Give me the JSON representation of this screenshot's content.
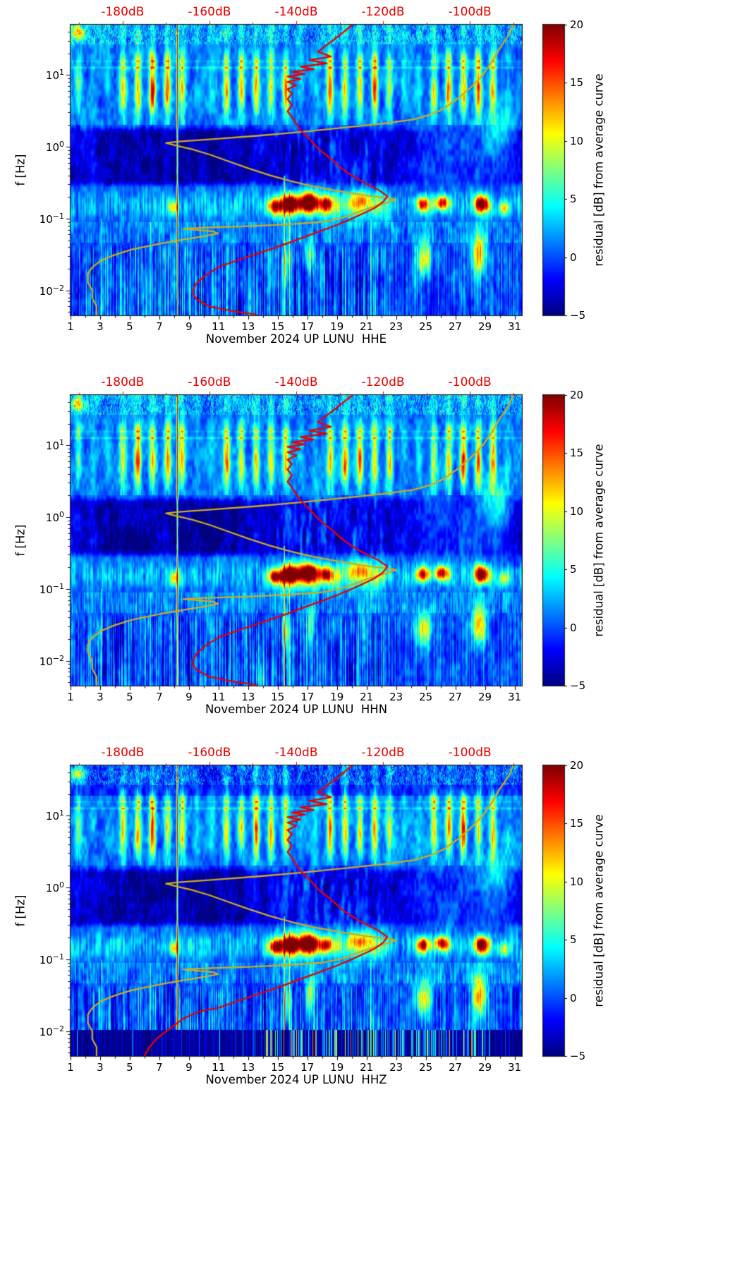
{
  "figure": {
    "background": "#ffffff"
  },
  "chart_data": {
    "type": "heatmap",
    "subtype": "seismic-noise-residual-spectrogram",
    "station": "UP LUNU",
    "month": "November 2024",
    "panels": [
      {
        "channel": "HHE",
        "xlabel": "November 2024 UP LUNU  HHE"
      },
      {
        "channel": "HHN",
        "xlabel": "November 2024 UP LUNU  HHN"
      },
      {
        "channel": "HHZ",
        "xlabel": "November 2024 UP LUNU  HHZ"
      }
    ],
    "x_axis": {
      "range_days": [
        1,
        31.5
      ],
      "major_tick_days": [
        1,
        3,
        5,
        7,
        9,
        11,
        13,
        15,
        17,
        19,
        21,
        23,
        25,
        27,
        29,
        31
      ],
      "minor_tick_days": [
        2,
        4,
        6,
        8,
        10,
        12,
        14,
        16,
        18,
        20,
        22,
        24,
        26,
        28,
        30
      ]
    },
    "y_axis": {
      "label": "f [Hz]",
      "scale": "log10",
      "range_hz": [
        0.0045,
        50
      ],
      "major_tick_exponents": [
        1,
        0,
        -1,
        -2
      ]
    },
    "top_axis": {
      "range_db": [
        -192,
        -88
      ],
      "tick_values_db": [
        -180,
        -160,
        -140,
        -120,
        -100
      ],
      "tick_labels": [
        "-180dB",
        "-160dB",
        "-140dB",
        "-120dB",
        "-100dB"
      ],
      "color": "#e60000"
    },
    "colorbar": {
      "label": "residual [dB] from average curve",
      "colormap": "jet",
      "range": [
        -5,
        20
      ],
      "tick_values": [
        20,
        15,
        10,
        5,
        0,
        -5
      ]
    },
    "curves": {
      "average_red": {
        "color": "#e80000",
        "points": [
          [
            -127,
            50
          ],
          [
            -129,
            40
          ],
          [
            -131,
            32
          ],
          [
            -133,
            26
          ],
          [
            -135,
            21
          ],
          [
            -132,
            18
          ],
          [
            -137,
            16
          ],
          [
            -133,
            14.5
          ],
          [
            -139,
            13
          ],
          [
            -136,
            12
          ],
          [
            -141,
            11
          ],
          [
            -138,
            10.3
          ],
          [
            -142,
            9.5
          ],
          [
            -139,
            8.8
          ],
          [
            -142,
            8
          ],
          [
            -140,
            7.2
          ],
          [
            -142,
            6.3
          ],
          [
            -141,
            5.5
          ],
          [
            -142,
            4.6
          ],
          [
            -141,
            3.8
          ],
          [
            -142,
            3.1
          ],
          [
            -141,
            2.6
          ],
          [
            -140,
            2.1
          ],
          [
            -139,
            1.7
          ],
          [
            -137,
            1.3
          ],
          [
            -135,
            0.95
          ],
          [
            -132,
            0.68
          ],
          [
            -129,
            0.47
          ],
          [
            -125,
            0.33
          ],
          [
            -121,
            0.25
          ],
          [
            -119,
            0.205
          ],
          [
            -120,
            0.17
          ],
          [
            -122,
            0.14
          ],
          [
            -125,
            0.115
          ],
          [
            -128,
            0.095
          ],
          [
            -131,
            0.08
          ],
          [
            -135,
            0.065
          ],
          [
            -139,
            0.053
          ],
          [
            -143,
            0.043
          ],
          [
            -148,
            0.034
          ],
          [
            -153,
            0.027
          ],
          [
            -158,
            0.021
          ],
          [
            -161,
            0.016
          ],
          [
            -163,
            0.0125
          ],
          [
            -164,
            0.0095
          ],
          [
            -163,
            0.0075
          ],
          [
            -160,
            0.006
          ],
          [
            -155,
            0.0052
          ],
          [
            -149,
            0.0046
          ]
        ],
        "hhz_low_freq_tail": [
          [
            -162,
            0.019
          ],
          [
            -166,
            0.015
          ],
          [
            -169,
            0.011
          ],
          [
            -172,
            0.008
          ],
          [
            -174,
            0.0058
          ],
          [
            -175,
            0.0045
          ]
        ]
      },
      "reference_yellow": {
        "color": "#ccaa22",
        "points": [
          [
            -90,
            50
          ],
          [
            -91,
            36
          ],
          [
            -93,
            24
          ],
          [
            -95,
            15
          ],
          [
            -97,
            10
          ],
          [
            -100,
            6.5
          ],
          [
            -103,
            4.6
          ],
          [
            -106,
            3.4
          ],
          [
            -109,
            2.8
          ],
          [
            -113,
            2.4
          ],
          [
            -120,
            2.1
          ],
          [
            -129,
            1.85
          ],
          [
            -139,
            1.6
          ],
          [
            -149,
            1.42
          ],
          [
            -159,
            1.28
          ],
          [
            -167,
            1.18
          ],
          [
            -170,
            1.13
          ],
          [
            -168,
            1.05
          ],
          [
            -164,
            0.92
          ],
          [
            -160,
            0.78
          ],
          [
            -156,
            0.64
          ],
          [
            -151,
            0.5
          ],
          [
            -146,
            0.4
          ],
          [
            -141,
            0.33
          ],
          [
            -136,
            0.28
          ],
          [
            -130,
            0.24
          ],
          [
            -124,
            0.21
          ],
          [
            -118,
            0.19
          ],
          [
            -117,
            0.183
          ],
          [
            -120,
            0.16
          ],
          [
            -124,
            0.135
          ],
          [
            -127,
            0.115
          ],
          [
            -130,
            0.1
          ],
          [
            -134,
            0.09
          ],
          [
            -142,
            0.083
          ],
          [
            -152,
            0.078
          ],
          [
            -162,
            0.0745
          ],
          [
            -166,
            0.072
          ],
          [
            -163,
            0.0695
          ],
          [
            -159,
            0.066
          ],
          [
            -158,
            0.062
          ],
          [
            -161,
            0.057
          ],
          [
            -166,
            0.051
          ],
          [
            -172,
            0.044
          ],
          [
            -178,
            0.037
          ],
          [
            -182,
            0.031
          ],
          [
            -185,
            0.026
          ],
          [
            -187,
            0.021
          ],
          [
            -188,
            0.017
          ],
          [
            -188,
            0.013
          ],
          [
            -187,
            0.01
          ],
          [
            -187,
            0.0078
          ],
          [
            -186,
            0.006
          ],
          [
            -186,
            0.0045
          ]
        ]
      }
    },
    "heatmap_features": {
      "stripe_day_intensity": [
        0.5,
        0.15,
        0.12,
        0.9,
        1,
        1,
        0.95,
        0.85,
        0.2,
        0.18,
        0.9,
        0.95,
        1,
        0.9,
        0.85,
        0.2,
        0.18,
        0.9,
        0.95,
        0.9,
        0.9,
        0.85,
        0.2,
        0.2,
        0.95,
        1,
        0.95,
        0.9,
        0.85,
        0.2,
        0
      ],
      "blobs": [
        {
          "d": 1.5,
          "u": 1.58,
          "sd": 0.5,
          "su": 0.1,
          "a": 9
        },
        {
          "d": 8.0,
          "u": -0.85,
          "sd": 0.35,
          "su": 0.1,
          "a": 9
        },
        {
          "d": 14.8,
          "u": -0.83,
          "sd": 0.45,
          "su": 0.1,
          "a": 15
        },
        {
          "d": 15.8,
          "u": -0.8,
          "sd": 0.55,
          "su": 0.12,
          "a": 22
        },
        {
          "d": 17.1,
          "u": -0.78,
          "sd": 0.65,
          "su": 0.13,
          "a": 22
        },
        {
          "d": 18.3,
          "u": -0.8,
          "sd": 0.45,
          "su": 0.1,
          "a": 13
        },
        {
          "d": 20.6,
          "u": -0.74,
          "sd": 0.8,
          "su": 0.12,
          "a": 8
        },
        {
          "d": 24.8,
          "u": -0.8,
          "sd": 0.45,
          "su": 0.1,
          "a": 16
        },
        {
          "d": 26.1,
          "u": -0.78,
          "sd": 0.5,
          "su": 0.1,
          "a": 17
        },
        {
          "d": 28.8,
          "u": -0.8,
          "sd": 0.5,
          "su": 0.12,
          "a": 21
        },
        {
          "d": 30.3,
          "u": -0.86,
          "sd": 0.35,
          "su": 0.1,
          "a": 9
        },
        {
          "d": 24.9,
          "u": -1.55,
          "sd": 0.55,
          "su": 0.24,
          "a": 11
        },
        {
          "d": 28.6,
          "u": -1.5,
          "sd": 0.45,
          "su": 0.3,
          "a": 13
        },
        {
          "d": 17.2,
          "u": -1.5,
          "sd": 0.3,
          "su": 0.25,
          "a": 8
        },
        {
          "d": 15.6,
          "u": -1.62,
          "sd": 0.25,
          "su": 0.28,
          "a": 7
        },
        {
          "d": 29.8,
          "u": 0.2,
          "sd": 1.0,
          "su": 0.3,
          "a": 5
        }
      ],
      "vlines": [
        {
          "d": 8.22,
          "w": 0.05,
          "a": 15,
          "u0": -2.35,
          "u1": 1.7
        },
        {
          "d": 15.45,
          "w": 0.04,
          "a": 9,
          "u0": -2.35,
          "u1": -0.4
        },
        {
          "d": 15.8,
          "w": 0.035,
          "a": 7,
          "u0": -2.35,
          "u1": -0.6
        },
        {
          "d": 3.1,
          "w": 0.03,
          "a": 6,
          "u0": -2.35,
          "u1": -1.0
        },
        {
          "d": 6.4,
          "w": 0.03,
          "a": 5,
          "u0": -2.35,
          "u1": -1.05
        },
        {
          "d": 21.3,
          "w": 0.03,
          "a": 6,
          "u0": -2.35,
          "u1": -1.0
        }
      ],
      "hhz_mask_below_hz": 0.0105
    }
  }
}
